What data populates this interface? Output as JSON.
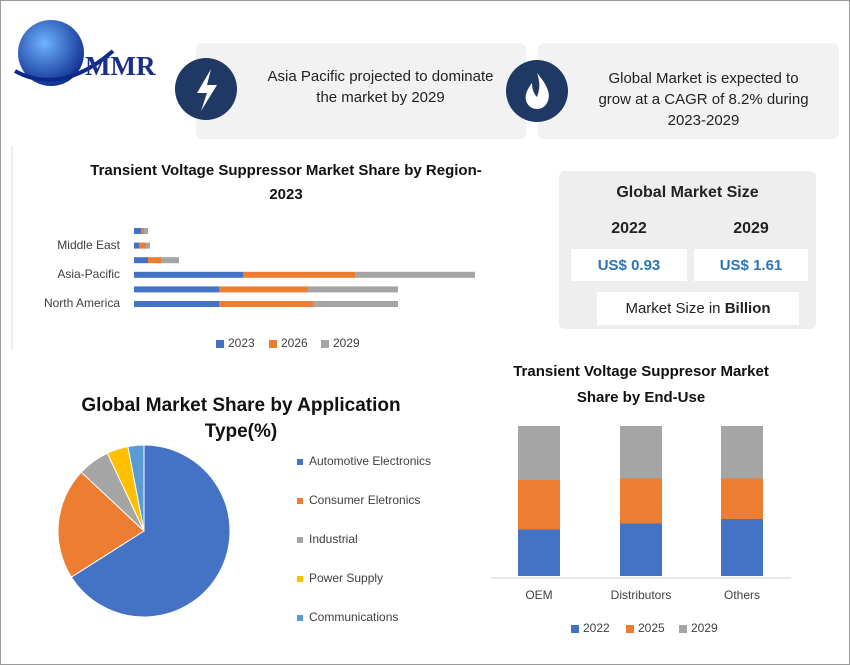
{
  "logo": "MMR",
  "callouts": [
    "Asia Pacific projected to dominate the market by 2029",
    "Global Market is expected to grow at a CAGR of 8.2% during 2023-2029"
  ],
  "market_size": {
    "title": "Global Market Size",
    "years": [
      "2022",
      "2029"
    ],
    "values": [
      "US$ 0.93",
      "US$ 1.61"
    ],
    "note": "Market Size in",
    "note_unit": "Billion"
  },
  "chart_data": [
    {
      "type": "bar",
      "orientation": "horizontal",
      "stacked": true,
      "title": "Transient Voltage Suppressor Market Share by Region-2023",
      "categories": [
        null,
        "Middle East",
        null,
        "Asia-Pacific",
        null,
        "North America"
      ],
      "xlim": [
        0,
        360
      ],
      "legend": "bottom",
      "series": [
        {
          "name": "2023",
          "color": "#4472c4",
          "values": [
            7,
            5,
            14,
            109,
            85,
            85
          ]
        },
        {
          "name": "2026",
          "color": "#ed7d31",
          "values": [
            3,
            7,
            13,
            112,
            89,
            94
          ]
        },
        {
          "name": "2029",
          "color": "#a5a5a5",
          "values": [
            4,
            4,
            18,
            120,
            90,
            85
          ]
        }
      ]
    },
    {
      "type": "pie",
      "title": "Global Market Share by Application Type(%)",
      "legend": "right",
      "categories": [
        "Automotive Electronics",
        "Consumer Eletronics",
        "Industrial",
        "Power Supply",
        "Communications"
      ],
      "values": [
        66,
        21,
        6,
        4,
        3
      ],
      "colors": [
        "#4472c4",
        "#ed7d31",
        "#a5a5a5",
        "#ffc000",
        "#5b9bd5"
      ]
    },
    {
      "type": "bar",
      "orientation": "vertical",
      "stacked": true,
      "title": "Transient Voltage Suppresor Market Share by End-Use",
      "categories": [
        "OEM",
        "Distributors",
        "Others"
      ],
      "ylim": [
        0,
        100
      ],
      "legend": "bottom",
      "series": [
        {
          "name": "2022",
          "color": "#4472c4",
          "values": [
            31,
            35,
            38
          ]
        },
        {
          "name": "2025",
          "color": "#ed7d31",
          "values": [
            33,
            30,
            27
          ]
        },
        {
          "name": "2029",
          "color": "#a5a5a5",
          "values": [
            36,
            35,
            35
          ]
        }
      ]
    }
  ]
}
